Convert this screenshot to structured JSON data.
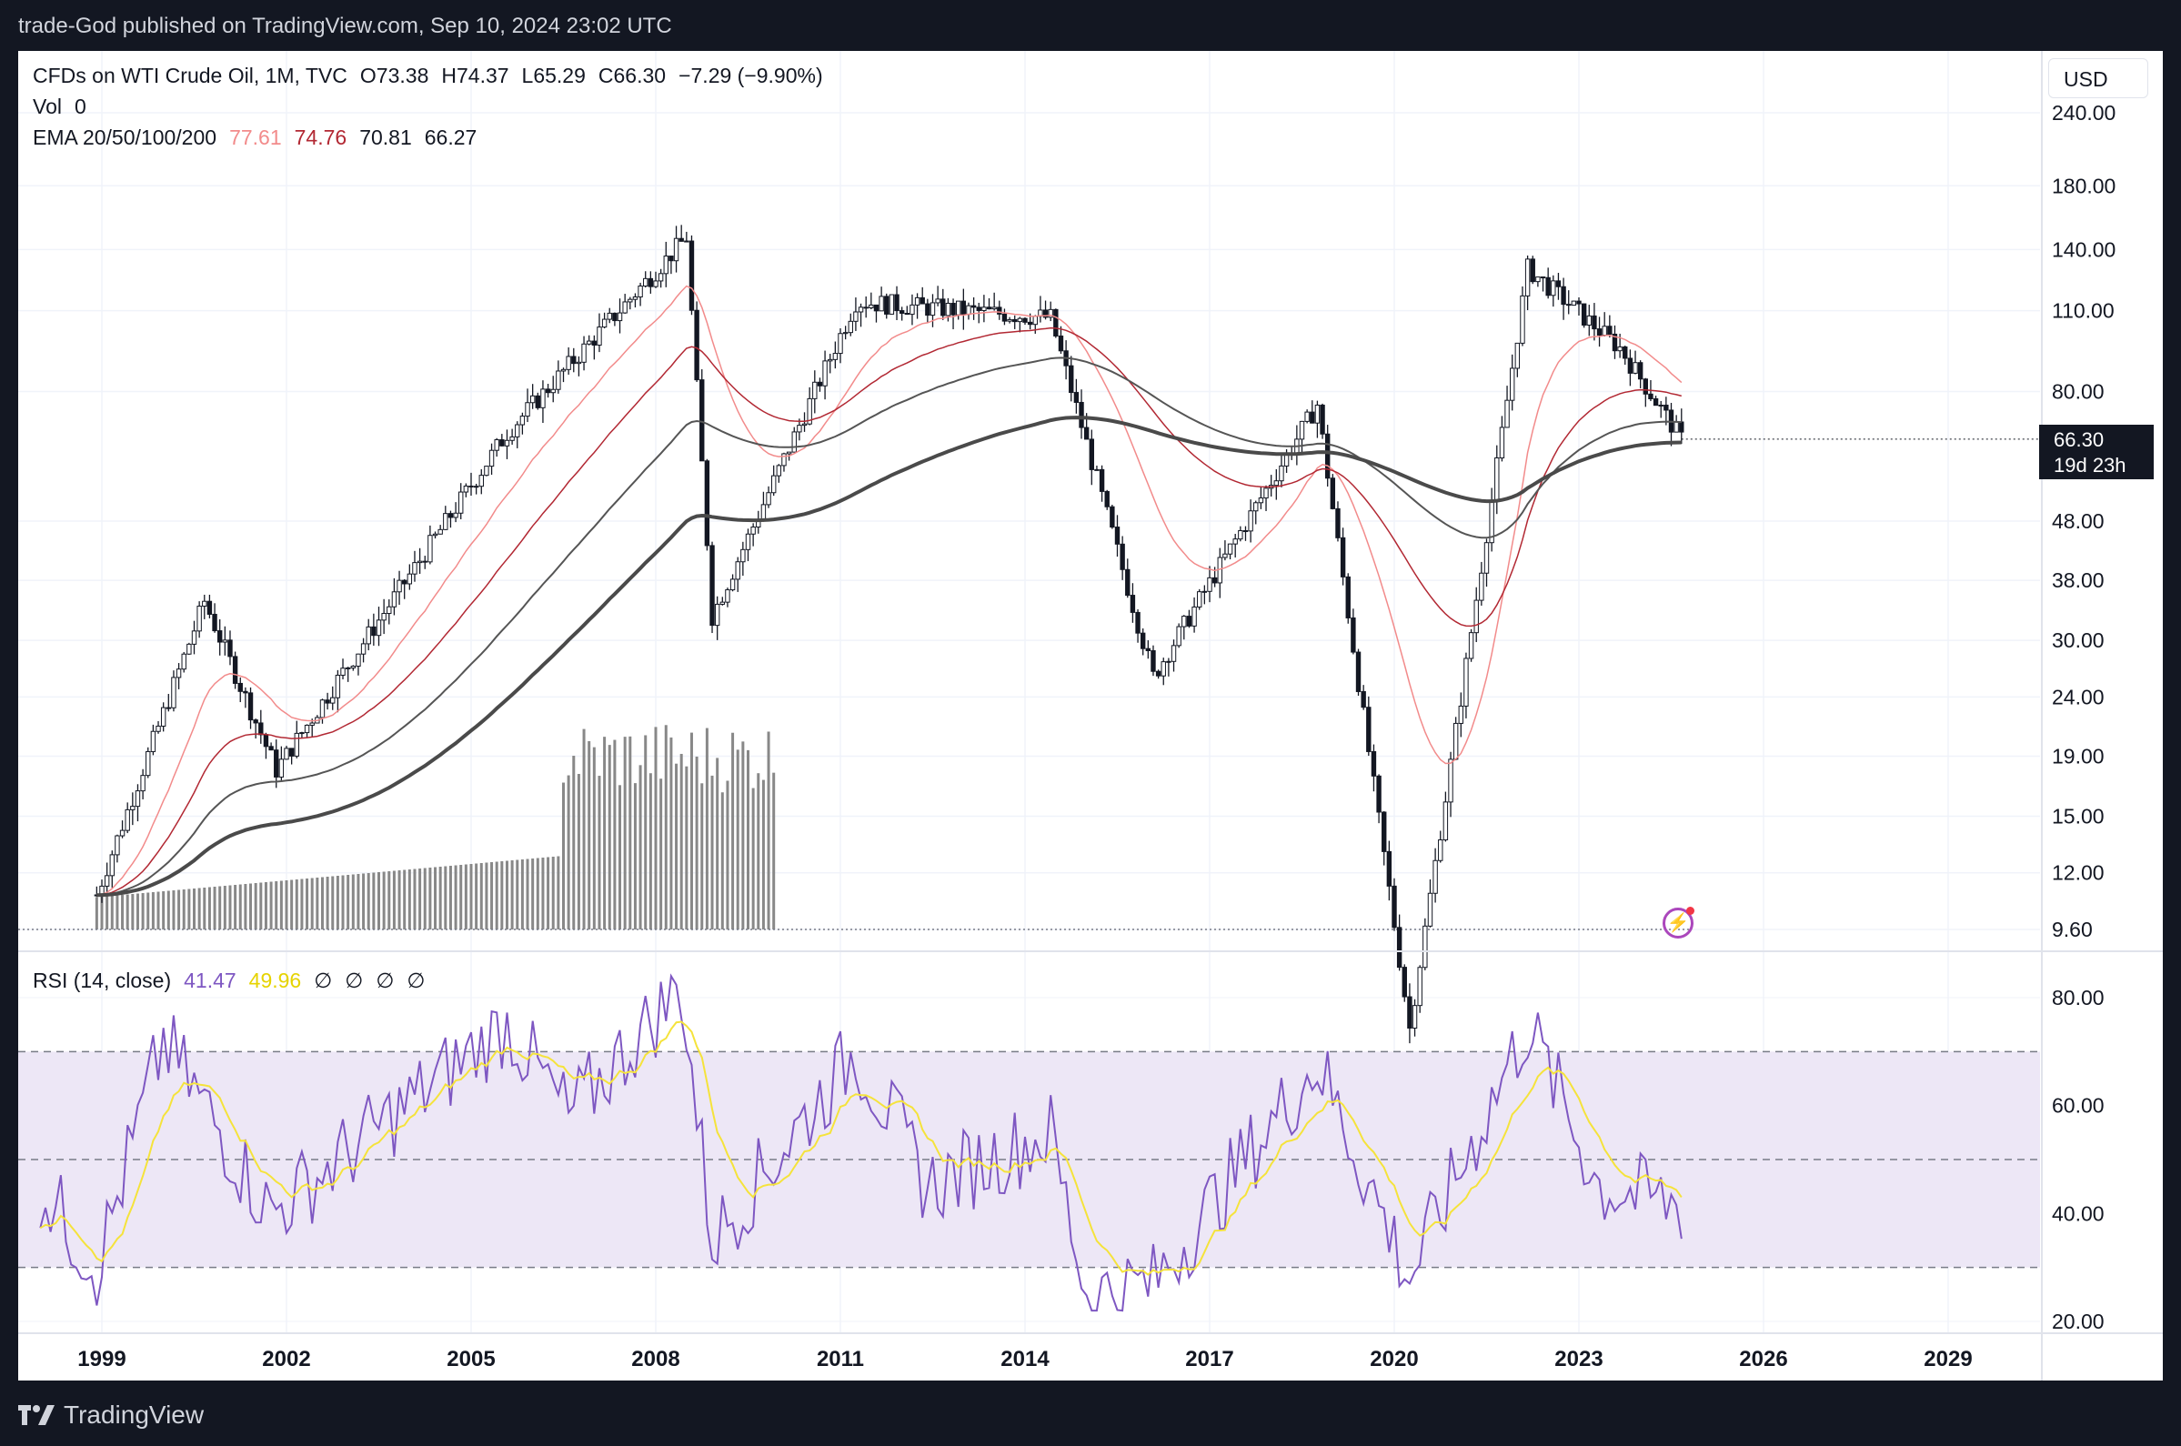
{
  "header": {
    "publisher_line": "trade-God published on TradingView.com, Sep 10, 2024 23:02 UTC"
  },
  "legend": {
    "symbol": "CFDs on WTI Crude Oil, 1M, TVC",
    "open": "O73.38",
    "high": "H74.37",
    "low": "L65.29",
    "close": "C66.30",
    "change": "−7.29 (−9.90%)",
    "vol_label": "Vol",
    "vol_value": "0",
    "ema_label": "EMA 20/50/100/200",
    "ema20": "77.61",
    "ema50": "74.76",
    "ema100": "70.81",
    "ema200": "66.27",
    "rsi_label": "RSI (14, close)",
    "rsi_value": "41.47",
    "rsi_ma": "49.96",
    "rsi_na": [
      "∅",
      "∅",
      "∅",
      "∅"
    ]
  },
  "currency": "USD",
  "last_price": {
    "value": "66.30",
    "countdown": "19d 23h"
  },
  "brand": "TradingView",
  "colors": {
    "candle": "#131722",
    "ema20": "#f28b8b",
    "ema50": "#b22833",
    "ema100": "#555555",
    "ema200": "#4a4a4a",
    "rsi": "#7e57c2",
    "rsi_ma": "#f5e33b",
    "rsi_band": "#ede7f6",
    "volume": "#888888"
  },
  "chart_data": [
    {
      "type": "candlestick",
      "title": "CFDs on WTI Crude Oil, 1M, TVC",
      "y_scale": "log",
      "y_ticks": [
        "240.00",
        "180.00",
        "140.00",
        "110.00",
        "80.00",
        "48.00",
        "38.00",
        "30.00",
        "24.00",
        "19.00",
        "15.00",
        "12.00",
        "9.60"
      ],
      "x_ticks": [
        "1999",
        "2002",
        "2005",
        "2008",
        "2011",
        "2014",
        "2017",
        "2020",
        "2023",
        "2026",
        "2029"
      ],
      "key_points": [
        {
          "date": "1998-12",
          "price": 11.0
        },
        {
          "date": "2000-09",
          "price": 35.0
        },
        {
          "date": "2001-11",
          "price": 18.0
        },
        {
          "date": "2005-08",
          "price": 68.0
        },
        {
          "date": "2008-07",
          "price": 147.0
        },
        {
          "date": "2008-12",
          "price": 33.0
        },
        {
          "date": "2011-04",
          "price": 114.0
        },
        {
          "date": "2014-06",
          "price": 107.0
        },
        {
          "date": "2016-02",
          "price": 26.0
        },
        {
          "date": "2018-10",
          "price": 76.0
        },
        {
          "date": "2020-04",
          "price": 6.5
        },
        {
          "date": "2022-03",
          "price": 130.0
        },
        {
          "date": "2023-09",
          "price": 95.0
        },
        {
          "date": "2024-09",
          "price": 66.3
        }
      ],
      "ema_last": {
        "ema20": 77.61,
        "ema50": 74.76,
        "ema100": 70.81,
        "ema200": 66.27
      }
    },
    {
      "type": "line",
      "title": "RSI (14, close)",
      "y_ticks": [
        "80.00",
        "60.00",
        "40.00",
        "20.00"
      ],
      "bands": [
        30,
        50,
        70
      ],
      "series": [
        {
          "name": "RSI",
          "points": [
            {
              "date": "1998-01",
              "value": 45
            },
            {
              "date": "1998-12",
              "value": 30
            },
            {
              "date": "2000-01",
              "value": 72
            },
            {
              "date": "2001-10",
              "value": 40
            },
            {
              "date": "2005-08",
              "value": 75
            },
            {
              "date": "2006-08",
              "value": 58
            },
            {
              "date": "2008-06",
              "value": 82
            },
            {
              "date": "2008-12",
              "value": 35
            },
            {
              "date": "2011-04",
              "value": 70
            },
            {
              "date": "2012-06",
              "value": 45
            },
            {
              "date": "2014-06",
              "value": 55
            },
            {
              "date": "2015-01",
              "value": 25
            },
            {
              "date": "2016-02",
              "value": 27
            },
            {
              "date": "2018-10",
              "value": 68
            },
            {
              "date": "2020-04",
              "value": 28
            },
            {
              "date": "2022-03",
              "value": 75
            },
            {
              "date": "2023-05",
              "value": 45
            },
            {
              "date": "2024-09",
              "value": 41.47
            }
          ]
        },
        {
          "name": "RSI MA",
          "last": 49.96
        }
      ]
    }
  ]
}
